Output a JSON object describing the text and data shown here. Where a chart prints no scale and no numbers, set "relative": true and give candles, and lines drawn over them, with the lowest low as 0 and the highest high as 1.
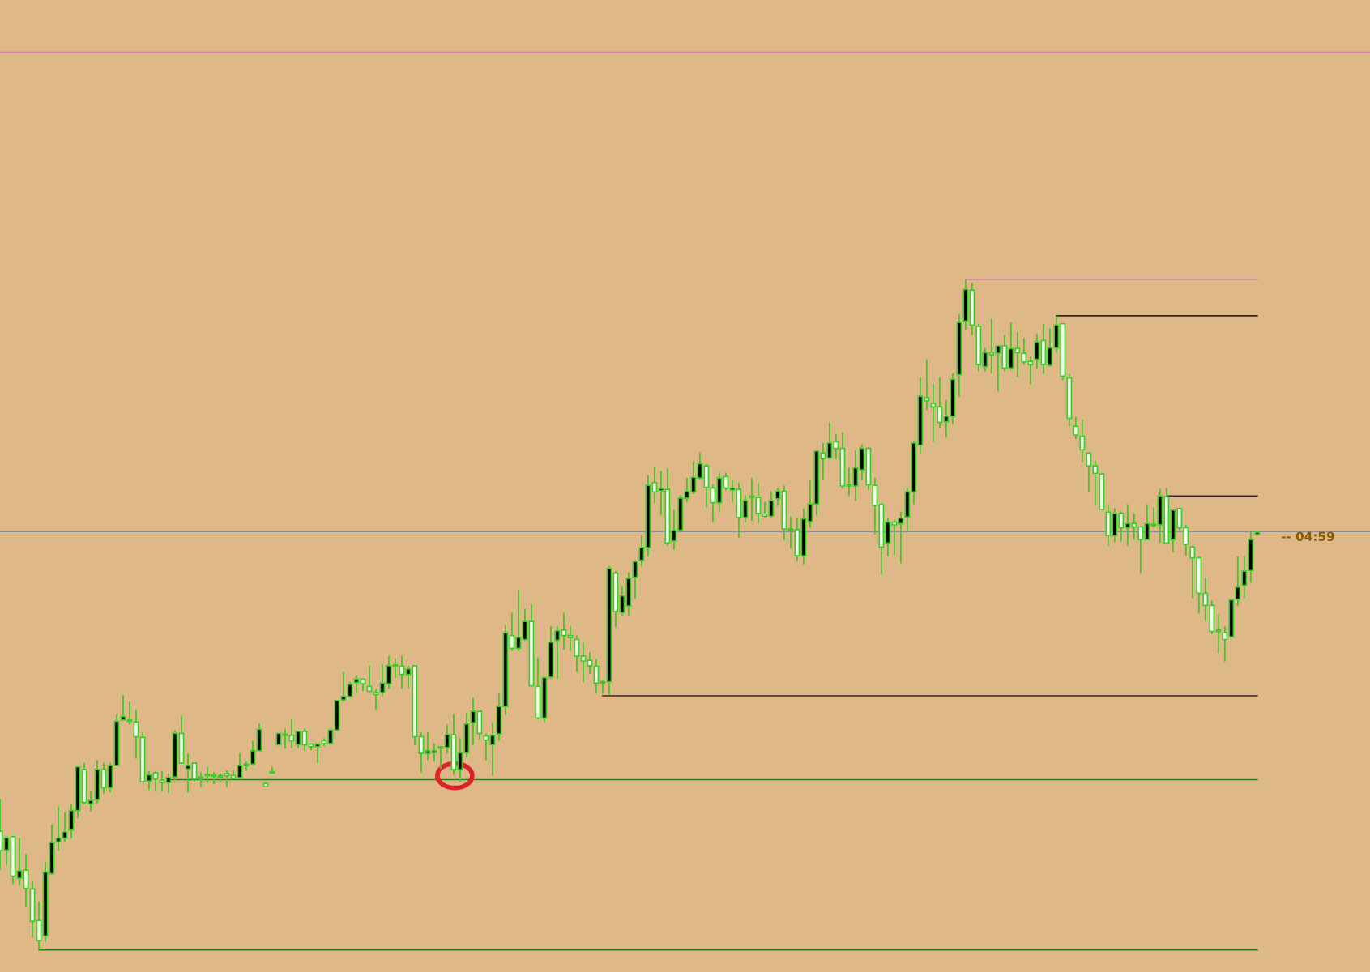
{
  "chart_data": {
    "type": "candlestick",
    "relative": true,
    "color": "#3ccc28",
    "categories": [
      null,
      null,
      null,
      null,
      null,
      null,
      null,
      null,
      null,
      null,
      null,
      null,
      null,
      null,
      null,
      null,
      null,
      null,
      null,
      null,
      null,
      null,
      null,
      null,
      null,
      null,
      null,
      null,
      null,
      null,
      null,
      null,
      null,
      null,
      null,
      null,
      null,
      null,
      null,
      null,
      null,
      null,
      null,
      null,
      null,
      null,
      null,
      null,
      null,
      null,
      null,
      null,
      null,
      null,
      null,
      null,
      null,
      null,
      null,
      null,
      null,
      null,
      null,
      null,
      null,
      null,
      null,
      null,
      null,
      null,
      null,
      null,
      null,
      null,
      null,
      null,
      null,
      null,
      null,
      null,
      null,
      null,
      null,
      null,
      null,
      null,
      null,
      null,
      null,
      null,
      null,
      null,
      null,
      null,
      null,
      null,
      null,
      null,
      null,
      null,
      null,
      null,
      null,
      null,
      null,
      null,
      null,
      null,
      null,
      null,
      null,
      null,
      null,
      null,
      null,
      null,
      null,
      null,
      null,
      null,
      null,
      null,
      null,
      null,
      null,
      null,
      null,
      null,
      null,
      null,
      null,
      null,
      null,
      null,
      null,
      null,
      null,
      null,
      null,
      null,
      null,
      null,
      null,
      null,
      null,
      null,
      null,
      null,
      null,
      null,
      null,
      null,
      null,
      null,
      null,
      null,
      null,
      null,
      null,
      null,
      null,
      null,
      null,
      null,
      null,
      null,
      null,
      null,
      null,
      null,
      null,
      null,
      null,
      null,
      null,
      null,
      null,
      null,
      null,
      null,
      null,
      null,
      null,
      null,
      null,
      null,
      null,
      null,
      null,
      null,
      null,
      null,
      null,
      null,
      null
    ],
    "ohlc": [
      [
        0.177,
        0.225,
        0.12,
        0.148
      ],
      [
        0.149,
        0.169,
        0.126,
        0.167
      ],
      [
        0.169,
        0.169,
        0.098,
        0.11
      ],
      [
        0.107,
        0.167,
        0.096,
        0.118
      ],
      [
        0.119,
        0.143,
        0.064,
        0.092
      ],
      [
        0.091,
        0.102,
        0.018,
        0.043
      ],
      [
        0.044,
        0.072,
        0.0,
        0.014
      ],
      [
        0.021,
        0.132,
        0.012,
        0.116
      ],
      [
        0.114,
        0.187,
        0.112,
        0.16
      ],
      [
        0.161,
        0.214,
        0.149,
        0.167
      ],
      [
        0.167,
        0.205,
        0.161,
        0.176
      ],
      [
        0.179,
        0.218,
        0.167,
        0.208
      ],
      [
        0.208,
        0.273,
        0.197,
        0.273
      ],
      [
        0.269,
        0.279,
        0.217,
        0.22
      ],
      [
        0.218,
        0.237,
        0.207,
        0.223
      ],
      [
        0.224,
        0.283,
        0.219,
        0.269
      ],
      [
        0.269,
        0.279,
        0.233,
        0.242
      ],
      [
        0.242,
        0.279,
        0.235,
        0.275
      ],
      [
        0.275,
        0.352,
        0.275,
        0.341
      ],
      [
        0.343,
        0.38,
        0.342,
        0.348
      ],
      [
        0.343,
        0.37,
        0.336,
        0.341
      ],
      [
        0.34,
        0.358,
        0.285,
        0.318
      ],
      [
        0.317,
        0.324,
        0.251,
        0.251
      ],
      [
        0.252,
        0.267,
        0.239,
        0.261
      ],
      [
        0.264,
        0.267,
        0.237,
        0.255
      ],
      [
        0.253,
        0.267,
        0.237,
        0.25
      ],
      [
        0.25,
        0.263,
        0.234,
        0.257
      ],
      [
        0.258,
        0.328,
        0.253,
        0.323
      ],
      [
        0.323,
        0.349,
        0.278,
        0.279
      ],
      [
        0.27,
        0.293,
        0.235,
        0.275
      ],
      [
        0.279,
        0.279,
        0.251,
        0.255
      ],
      [
        0.255,
        0.265,
        0.243,
        0.258
      ],
      [
        0.26,
        0.273,
        0.249,
        0.26
      ],
      [
        0.259,
        0.265,
        0.247,
        0.259
      ],
      [
        0.258,
        0.263,
        0.251,
        0.258
      ],
      [
        0.263,
        0.268,
        0.243,
        0.26
      ],
      [
        0.26,
        0.268,
        0.255,
        0.256
      ],
      [
        0.257,
        0.294,
        0.256,
        0.275
      ],
      [
        0.275,
        0.281,
        0.267,
        0.275
      ],
      [
        0.277,
        0.312,
        0.275,
        0.297
      ],
      [
        0.297,
        0.338,
        0.297,
        0.329
      ],
      [
        0.248,
        0.248,
        0.244,
        0.244
      ],
      [
        0.264,
        0.273,
        0.263,
        0.266
      ],
      [
        0.306,
        0.323,
        0.306,
        0.323
      ],
      [
        0.32,
        0.33,
        0.3,
        0.32
      ],
      [
        0.32,
        0.344,
        0.301,
        0.312
      ],
      [
        0.306,
        0.326,
        0.301,
        0.326
      ],
      [
        0.326,
        0.33,
        0.297,
        0.306
      ],
      [
        0.307,
        0.307,
        0.298,
        0.303
      ],
      [
        0.303,
        0.308,
        0.278,
        0.307
      ],
      [
        0.312,
        0.316,
        0.304,
        0.308
      ],
      [
        0.308,
        0.33,
        0.307,
        0.328
      ],
      [
        0.328,
        0.373,
        0.326,
        0.372
      ],
      [
        0.373,
        0.414,
        0.37,
        0.378
      ],
      [
        0.378,
        0.4,
        0.378,
        0.396
      ],
      [
        0.399,
        0.41,
        0.384,
        0.404
      ],
      [
        0.404,
        0.404,
        0.386,
        0.397
      ],
      [
        0.393,
        0.424,
        0.384,
        0.386
      ],
      [
        0.384,
        0.388,
        0.358,
        0.381
      ],
      [
        0.384,
        0.426,
        0.378,
        0.398
      ],
      [
        0.397,
        0.439,
        0.39,
        0.424
      ],
      [
        0.423,
        0.435,
        0.406,
        0.424
      ],
      [
        0.423,
        0.439,
        0.39,
        0.411
      ],
      [
        0.411,
        0.424,
        0.39,
        0.419
      ],
      [
        0.424,
        0.424,
        0.306,
        0.318
      ],
      [
        0.318,
        0.324,
        0.265,
        0.293
      ],
      [
        0.293,
        0.325,
        0.283,
        0.297
      ],
      [
        0.294,
        0.308,
        0.281,
        0.297
      ],
      [
        0.301,
        0.303,
        0.27,
        0.303
      ],
      [
        0.302,
        0.336,
        0.293,
        0.321
      ],
      [
        0.321,
        0.352,
        0.261,
        0.269
      ],
      [
        0.269,
        0.316,
        0.251,
        0.294
      ],
      [
        0.294,
        0.354,
        0.287,
        0.337
      ],
      [
        0.339,
        0.376,
        0.306,
        0.356
      ],
      [
        0.356,
        0.356,
        0.314,
        0.323
      ],
      [
        0.319,
        0.323,
        0.283,
        0.313
      ],
      [
        0.306,
        0.339,
        0.26,
        0.32
      ],
      [
        0.322,
        0.382,
        0.312,
        0.363
      ],
      [
        0.363,
        0.485,
        0.35,
        0.473
      ],
      [
        0.469,
        0.503,
        0.446,
        0.45
      ],
      [
        0.45,
        0.537,
        0.446,
        0.466
      ],
      [
        0.463,
        0.509,
        0.461,
        0.49
      ],
      [
        0.49,
        0.516,
        0.394,
        0.394
      ],
      [
        0.393,
        0.436,
        0.344,
        0.346
      ],
      [
        0.346,
        0.406,
        0.34,
        0.406
      ],
      [
        0.407,
        0.483,
        0.404,
        0.459
      ],
      [
        0.462,
        0.483,
        0.404,
        0.476
      ],
      [
        0.477,
        0.503,
        0.448,
        0.469
      ],
      [
        0.469,
        0.483,
        0.446,
        0.466
      ],
      [
        0.463,
        0.469,
        0.414,
        0.438
      ],
      [
        0.438,
        0.459,
        0.399,
        0.431
      ],
      [
        0.432,
        0.444,
        0.412,
        0.424
      ],
      [
        0.423,
        0.434,
        0.382,
        0.398
      ],
      [
        0.398,
        0.402,
        0.382,
        0.398
      ],
      [
        0.4,
        0.573,
        0.38,
        0.569
      ],
      [
        0.562,
        0.565,
        0.481,
        0.505
      ],
      [
        0.503,
        0.542,
        0.499,
        0.528
      ],
      [
        0.513,
        0.563,
        0.499,
        0.554
      ],
      [
        0.556,
        0.581,
        0.524,
        0.579
      ],
      [
        0.581,
        0.618,
        0.572,
        0.6
      ],
      [
        0.6,
        0.708,
        0.587,
        0.693
      ],
      [
        0.697,
        0.721,
        0.666,
        0.683
      ],
      [
        0.685,
        0.714,
        0.648,
        0.688
      ],
      [
        0.687,
        0.718,
        0.603,
        0.607
      ],
      [
        0.61,
        0.656,
        0.597,
        0.626
      ],
      [
        0.626,
        0.678,
        0.626,
        0.674
      ],
      [
        0.674,
        0.704,
        0.668,
        0.684
      ],
      [
        0.683,
        0.729,
        0.68,
        0.705
      ],
      [
        0.704,
        0.742,
        0.702,
        0.725
      ],
      [
        0.722,
        0.725,
        0.66,
        0.69
      ],
      [
        0.689,
        0.694,
        0.638,
        0.667
      ],
      [
        0.667,
        0.712,
        0.654,
        0.704
      ],
      [
        0.706,
        0.712,
        0.685,
        0.689
      ],
      [
        0.686,
        0.701,
        0.667,
        0.689
      ],
      [
        0.687,
        0.697,
        0.615,
        0.645
      ],
      [
        0.645,
        0.678,
        0.638,
        0.67
      ],
      [
        0.675,
        0.704,
        0.64,
        0.675
      ],
      [
        0.675,
        0.696,
        0.636,
        0.651
      ],
      [
        0.65,
        0.668,
        0.644,
        0.647
      ],
      [
        0.647,
        0.684,
        0.644,
        0.67
      ],
      [
        0.673,
        0.689,
        0.662,
        0.684
      ],
      [
        0.684,
        0.693,
        0.611,
        0.628
      ],
      [
        0.626,
        0.646,
        0.599,
        0.626
      ],
      [
        0.627,
        0.644,
        0.58,
        0.588
      ],
      [
        0.588,
        0.658,
        0.575,
        0.643
      ],
      [
        0.639,
        0.701,
        0.63,
        0.665
      ],
      [
        0.665,
        0.744,
        0.648,
        0.744
      ],
      [
        0.741,
        0.756,
        0.702,
        0.733
      ],
      [
        0.734,
        0.787,
        0.732,
        0.756
      ],
      [
        0.758,
        0.769,
        0.732,
        0.748
      ],
      [
        0.748,
        0.772,
        0.688,
        0.692
      ],
      [
        0.692,
        0.719,
        0.677,
        0.692
      ],
      [
        0.692,
        0.745,
        0.67,
        0.719
      ],
      [
        0.716,
        0.754,
        0.702,
        0.748
      ],
      [
        0.748,
        0.75,
        0.686,
        0.694
      ],
      [
        0.693,
        0.704,
        0.62,
        0.663
      ],
      [
        0.664,
        0.667,
        0.56,
        0.601
      ],
      [
        0.607,
        0.644,
        0.587,
        0.638
      ],
      [
        0.638,
        0.642,
        0.589,
        0.634
      ],
      [
        0.636,
        0.654,
        0.577,
        0.644
      ],
      [
        0.646,
        0.689,
        0.624,
        0.683
      ],
      [
        0.683,
        0.76,
        0.664,
        0.756
      ],
      [
        0.753,
        0.854,
        0.74,
        0.826
      ],
      [
        0.824,
        0.881,
        0.805,
        0.819
      ],
      [
        0.815,
        0.845,
        0.758,
        0.81
      ],
      [
        0.81,
        0.854,
        0.779,
        0.787
      ],
      [
        0.788,
        0.82,
        0.764,
        0.796
      ],
      [
        0.796,
        0.86,
        0.784,
        0.851
      ],
      [
        0.858,
        0.948,
        0.825,
        0.936
      ],
      [
        0.938,
        1.0,
        0.924,
        0.985
      ],
      [
        0.984,
        0.995,
        0.917,
        0.932
      ],
      [
        0.93,
        0.934,
        0.863,
        0.873
      ],
      [
        0.87,
        0.898,
        0.863,
        0.891
      ],
      [
        0.891,
        0.942,
        0.86,
        0.888
      ],
      [
        0.89,
        0.901,
        0.833,
        0.901
      ],
      [
        0.901,
        0.917,
        0.863,
        0.868
      ],
      [
        0.868,
        0.936,
        0.865,
        0.897
      ],
      [
        0.897,
        0.922,
        0.855,
        0.891
      ],
      [
        0.89,
        0.913,
        0.873,
        0.877
      ],
      [
        0.878,
        0.885,
        0.844,
        0.873
      ],
      [
        0.881,
        0.919,
        0.866,
        0.907
      ],
      [
        0.909,
        0.934,
        0.859,
        0.873
      ],
      [
        0.872,
        0.927,
        0.87,
        0.898
      ],
      [
        0.898,
        0.946,
        0.891,
        0.932
      ],
      [
        0.934,
        0.934,
        0.85,
        0.856
      ],
      [
        0.853,
        0.859,
        0.781,
        0.793
      ],
      [
        0.781,
        0.795,
        0.762,
        0.768
      ],
      [
        0.766,
        0.791,
        0.728,
        0.746
      ],
      [
        0.741,
        0.741,
        0.682,
        0.722
      ],
      [
        0.722,
        0.73,
        0.663,
        0.711
      ],
      [
        0.71,
        0.71,
        0.657,
        0.657
      ],
      [
        0.653,
        0.664,
        0.603,
        0.618
      ],
      [
        0.618,
        0.659,
        0.608,
        0.651
      ],
      [
        0.651,
        0.654,
        0.609,
        0.63
      ],
      [
        0.63,
        0.664,
        0.603,
        0.636
      ],
      [
        0.636,
        0.651,
        0.612,
        0.631
      ],
      [
        0.631,
        0.631,
        0.561,
        0.612
      ],
      [
        0.612,
        0.664,
        0.611,
        0.636
      ],
      [
        0.633,
        0.66,
        0.63,
        0.633
      ],
      [
        0.634,
        0.688,
        0.607,
        0.677
      ],
      [
        0.676,
        0.689,
        0.607,
        0.607
      ],
      [
        0.612,
        0.656,
        0.593,
        0.656
      ],
      [
        0.658,
        0.66,
        0.626,
        0.63
      ],
      [
        0.63,
        0.634,
        0.588,
        0.605
      ],
      [
        0.601,
        0.603,
        0.525,
        0.585
      ],
      [
        0.585,
        0.587,
        0.502,
        0.532
      ],
      [
        0.532,
        0.555,
        0.49,
        0.514
      ],
      [
        0.514,
        0.521,
        0.471,
        0.475
      ],
      [
        0.475,
        0.5,
        0.442,
        0.475
      ],
      [
        0.473,
        0.483,
        0.43,
        0.463
      ],
      [
        0.467,
        0.522,
        0.466,
        0.522
      ],
      [
        0.523,
        0.587,
        0.513,
        0.541
      ],
      [
        0.544,
        0.588,
        0.525,
        0.565
      ],
      [
        0.566,
        0.624,
        0.548,
        0.612
      ],
      [
        0.62,
        0.624,
        0.62,
        0.623
      ]
    ],
    "series": [
      {
        "type": "line",
        "color": "#2e7d1a",
        "values": [
          null,
          null,
          null,
          null,
          null,
          null,
          0,
          0,
          0,
          0,
          0,
          0,
          0,
          0,
          0,
          0,
          0,
          0,
          0,
          0,
          0,
          0,
          0,
          0,
          0,
          0,
          0,
          0,
          0,
          0,
          0,
          0,
          0,
          0,
          0,
          0,
          0,
          0,
          0,
          0,
          0,
          0,
          0,
          0,
          0,
          0,
          0,
          0,
          0,
          0,
          0,
          0,
          0,
          0,
          0,
          0,
          0,
          0,
          0,
          0,
          0,
          0,
          0,
          0,
          0,
          0,
          0,
          0,
          0,
          0,
          0,
          0,
          0,
          0,
          0,
          0,
          0,
          0,
          0,
          0,
          0,
          0,
          0,
          0,
          0,
          0,
          0,
          0,
          0,
          0,
          0,
          0,
          0,
          0,
          0,
          0,
          0,
          0,
          0,
          0,
          0,
          0,
          0,
          0,
          0,
          0,
          0,
          0,
          0,
          0,
          0,
          0,
          0,
          0,
          0,
          0,
          0,
          0,
          0,
          0,
          0,
          0,
          0,
          0,
          0,
          0,
          0,
          0,
          0,
          0,
          0,
          0,
          0,
          0,
          0,
          0,
          0,
          0,
          0,
          0,
          0,
          0,
          0,
          0,
          0,
          0,
          0,
          0,
          0,
          0,
          0,
          0,
          0,
          0,
          0,
          0,
          0,
          0,
          0,
          0,
          0,
          0,
          0,
          0,
          0,
          0,
          0,
          0,
          0,
          0,
          0,
          0,
          0,
          0,
          0,
          0,
          0,
          0,
          0,
          0,
          0,
          0,
          0,
          0,
          0,
          0,
          0,
          0,
          0,
          0,
          0,
          0,
          0,
          0,
          0
        ]
      },
      {
        "type": "line",
        "color": "#2e7d1a",
        "values": [
          null,
          null,
          null,
          null,
          null,
          null,
          null,
          null,
          null,
          null,
          null,
          null,
          null,
          null,
          null,
          null,
          null,
          null,
          null,
          null,
          null,
          null,
          null,
          null,
          null,
          null,
          0.254,
          0.254,
          0.254,
          0.254,
          0.254,
          0.254,
          0.254,
          0.254,
          0.254,
          0.254,
          0.254,
          0.254,
          0.254,
          0.254,
          0.254,
          0.254,
          0.254,
          0.254,
          0.254,
          0.254,
          0.254,
          0.254,
          0.254,
          0.254,
          0.254,
          0.254,
          0.254,
          0.254,
          0.254,
          0.254,
          0.254,
          0.254,
          0.254,
          0.254,
          0.254,
          0.254,
          0.254,
          0.254,
          0.254,
          0.254,
          0.254,
          0.254,
          0.254,
          0.254,
          0.254,
          0.254,
          0.254,
          0.254,
          0.254,
          0.254,
          0.254,
          0.254,
          0.254,
          0.254,
          0.254,
          0.254,
          0.254,
          0.254,
          0.254,
          0.254,
          0.254,
          0.254,
          0.254,
          0.254,
          0.254,
          0.254,
          0.254,
          0.254,
          0.254,
          0.254,
          0.254,
          0.254,
          0.254,
          0.254,
          0.254,
          0.254,
          0.254,
          0.254,
          0.254,
          0.254,
          0.254,
          0.254,
          0.254,
          0.254,
          0.254,
          0.254,
          0.254,
          0.254,
          0.254,
          0.254,
          0.254,
          0.254,
          0.254,
          0.254,
          0.254,
          0.254,
          0.254,
          0.254,
          0.254,
          0.254,
          0.254,
          0.254,
          0.254,
          0.254,
          0.254,
          0.254,
          0.254,
          0.254,
          0.254,
          0.254,
          0.254,
          0.254,
          0.254,
          0.254,
          0.254,
          0.254,
          0.254,
          0.254,
          0.254,
          0.254,
          0.254,
          0.254,
          0.254,
          0.254,
          0.254,
          0.254,
          0.254,
          0.254,
          0.254,
          0.254,
          0.254,
          0.254,
          0.254,
          0.254,
          0.254,
          0.254,
          0.254,
          0.254,
          0.254,
          0.254,
          0.254,
          0.254,
          0.254,
          0.254,
          0.254,
          0.254,
          0.254,
          0.254,
          0.254,
          0.254,
          0.254,
          0.254,
          0.254,
          0.254,
          0.254,
          0.254,
          0.254,
          0.254,
          0.254,
          0.254,
          0.254,
          0.254,
          0.254,
          0.254,
          0.254,
          0.254,
          0.254,
          0.254,
          0.254
        ]
      },
      {
        "type": "line",
        "color": "#3a2030",
        "values": [
          null,
          null,
          null,
          null,
          null,
          null,
          null,
          null,
          null,
          null,
          null,
          null,
          null,
          null,
          null,
          null,
          null,
          null,
          null,
          null,
          null,
          null,
          null,
          null,
          null,
          null,
          null,
          null,
          null,
          null,
          null,
          null,
          null,
          null,
          null,
          null,
          null,
          null,
          null,
          null,
          null,
          null,
          null,
          null,
          null,
          null,
          null,
          null,
          null,
          null,
          null,
          null,
          null,
          null,
          null,
          null,
          null,
          null,
          null,
          null,
          null,
          null,
          null,
          null,
          null,
          null,
          null,
          null,
          null,
          null,
          null,
          null,
          null,
          null,
          null,
          null,
          null,
          null,
          null,
          null,
          null,
          null,
          null,
          null,
          null,
          null,
          null,
          null,
          null,
          null,
          null,
          null,
          null,
          0.379,
          0.379,
          0.379,
          0.379,
          0.379,
          0.379,
          0.379,
          0.379,
          0.379,
          0.379,
          0.379,
          0.379,
          0.379,
          0.379,
          0.379,
          0.379,
          0.379,
          0.379,
          0.379,
          0.379,
          0.379,
          0.379,
          0.379,
          0.379,
          0.379,
          0.379,
          0.379,
          0.379,
          0.379,
          0.379,
          0.379,
          0.379,
          0.379,
          0.379,
          0.379,
          0.379,
          0.379,
          0.379,
          0.379,
          0.379,
          0.379,
          0.379,
          0.379,
          0.379,
          0.379,
          0.379,
          0.379,
          0.379,
          0.379,
          0.379,
          0.379,
          0.379,
          0.379,
          0.379,
          0.379,
          0.379,
          0.379,
          0.379,
          0.379,
          0.379,
          0.379,
          0.379,
          0.379,
          0.379,
          0.379,
          0.379,
          0.379,
          0.379,
          0.379,
          0.379,
          0.379,
          0.379,
          0.379,
          0.379,
          0.379,
          0.379,
          0.379,
          0.379,
          0.379,
          0.379,
          0.379,
          0.379,
          0.379,
          0.379,
          0.379,
          0.379,
          0.379,
          0.379,
          0.379,
          0.379,
          0.379,
          0.379,
          0.379,
          0.379,
          0.379,
          0.379,
          0.379,
          0.379,
          0.379,
          0.379,
          0.379,
          0.379
        ]
      },
      {
        "type": "line",
        "color": "#d687b4",
        "values": [
          null,
          null,
          null,
          null,
          null,
          null,
          null,
          null,
          null,
          null,
          null,
          null,
          null,
          null,
          null,
          null,
          null,
          null,
          null,
          null,
          null,
          null,
          null,
          null,
          null,
          null,
          null,
          null,
          null,
          null,
          null,
          null,
          null,
          null,
          null,
          null,
          null,
          null,
          null,
          null,
          null,
          null,
          null,
          null,
          null,
          null,
          null,
          null,
          null,
          null,
          null,
          null,
          null,
          null,
          null,
          null,
          null,
          null,
          null,
          null,
          null,
          null,
          null,
          null,
          null,
          null,
          null,
          null,
          null,
          null,
          null,
          null,
          null,
          null,
          null,
          null,
          null,
          null,
          null,
          null,
          null,
          null,
          null,
          null,
          null,
          null,
          null,
          null,
          null,
          null,
          null,
          null,
          null,
          null,
          null,
          null,
          null,
          null,
          null,
          null,
          null,
          null,
          null,
          null,
          null,
          null,
          null,
          null,
          null,
          null,
          null,
          null,
          null,
          null,
          null,
          null,
          null,
          null,
          null,
          null,
          null,
          null,
          null,
          null,
          null,
          null,
          null,
          null,
          null,
          null,
          null,
          null,
          null,
          null,
          null,
          null,
          null,
          null,
          null,
          null,
          null,
          null,
          null,
          null,
          null,
          null,
          null,
          null,
          null,
          1,
          1,
          1,
          1,
          1,
          1,
          1,
          1,
          1,
          1,
          1,
          1,
          1,
          1,
          1,
          1,
          1,
          1,
          1,
          1,
          1,
          1,
          1,
          1,
          1,
          1,
          1,
          1,
          1,
          1,
          1,
          1,
          1,
          1,
          1,
          1,
          1,
          1,
          1,
          1,
          1,
          1,
          1,
          1,
          1,
          1
        ]
      },
      {
        "type": "line",
        "color": "#3a2030",
        "values": [
          null,
          null,
          null,
          null,
          null,
          null,
          null,
          null,
          null,
          null,
          null,
          null,
          null,
          null,
          null,
          null,
          null,
          null,
          null,
          null,
          null,
          null,
          null,
          null,
          null,
          null,
          null,
          null,
          null,
          null,
          null,
          null,
          null,
          null,
          null,
          null,
          null,
          null,
          null,
          null,
          null,
          null,
          null,
          null,
          null,
          null,
          null,
          null,
          null,
          null,
          null,
          null,
          null,
          null,
          null,
          null,
          null,
          null,
          null,
          null,
          null,
          null,
          null,
          null,
          null,
          null,
          null,
          null,
          null,
          null,
          null,
          null,
          null,
          null,
          null,
          null,
          null,
          null,
          null,
          null,
          null,
          null,
          null,
          null,
          null,
          null,
          null,
          null,
          null,
          null,
          null,
          null,
          null,
          null,
          null,
          null,
          null,
          null,
          null,
          null,
          null,
          null,
          null,
          null,
          null,
          null,
          null,
          null,
          null,
          null,
          null,
          null,
          null,
          null,
          null,
          null,
          null,
          null,
          null,
          null,
          null,
          null,
          null,
          null,
          null,
          null,
          null,
          null,
          null,
          null,
          null,
          null,
          null,
          null,
          null,
          null,
          null,
          null,
          null,
          null,
          null,
          null,
          null,
          null,
          null,
          null,
          null,
          null,
          null,
          null,
          null,
          null,
          null,
          null,
          null,
          null,
          null,
          null,
          null,
          null,
          null,
          null,
          null,
          0.946,
          0.946,
          0.946,
          0.946,
          0.946,
          0.946,
          0.946,
          0.946,
          0.946,
          0.946,
          0.946,
          0.946,
          0.946,
          0.946,
          0.946,
          0.946,
          0.946,
          0.946,
          0.946,
          0.946,
          0.946,
          0.946,
          0.946,
          0.946,
          0.946,
          0.946,
          0.946,
          0.946,
          0.946,
          0.946,
          0.946,
          0.946
        ]
      },
      {
        "type": "line",
        "color": "#3a2030",
        "values": [
          null,
          null,
          null,
          null,
          null,
          null,
          null,
          null,
          null,
          null,
          null,
          null,
          null,
          null,
          null,
          null,
          null,
          null,
          null,
          null,
          null,
          null,
          null,
          null,
          null,
          null,
          null,
          null,
          null,
          null,
          null,
          null,
          null,
          null,
          null,
          null,
          null,
          null,
          null,
          null,
          null,
          null,
          null,
          null,
          null,
          null,
          null,
          null,
          null,
          null,
          null,
          null,
          null,
          null,
          null,
          null,
          null,
          null,
          null,
          null,
          null,
          null,
          null,
          null,
          null,
          null,
          null,
          null,
          null,
          null,
          null,
          null,
          null,
          null,
          null,
          null,
          null,
          null,
          null,
          null,
          null,
          null,
          null,
          null,
          null,
          null,
          null,
          null,
          null,
          null,
          null,
          null,
          null,
          null,
          null,
          null,
          null,
          null,
          null,
          null,
          null,
          null,
          null,
          null,
          null,
          null,
          null,
          null,
          null,
          null,
          null,
          null,
          null,
          null,
          null,
          null,
          null,
          null,
          null,
          null,
          null,
          null,
          null,
          null,
          null,
          null,
          null,
          null,
          null,
          null,
          null,
          null,
          null,
          null,
          null,
          null,
          null,
          null,
          null,
          null,
          null,
          null,
          null,
          null,
          null,
          null,
          null,
          null,
          null,
          null,
          null,
          null,
          null,
          null,
          null,
          null,
          null,
          null,
          null,
          null,
          null,
          null,
          null,
          null,
          null,
          null,
          null,
          null,
          null,
          null,
          null,
          null,
          null,
          null,
          null,
          null,
          null,
          null,
          null,
          null,
          0.677,
          0.677,
          0.677,
          0.677,
          0.677,
          0.677,
          0.677,
          0.677,
          0.677,
          0.677,
          0.677,
          0.677,
          0.677,
          0.677,
          0.677
        ]
      }
    ],
    "ref_lines": [
      {
        "axis": "y",
        "value": 1.339,
        "color": "#d687b4"
      },
      {
        "axis": "y",
        "value": 0.624,
        "color": "#8c8c8c"
      }
    ],
    "annotations": [
      "-- 04:59"
    ]
  }
}
